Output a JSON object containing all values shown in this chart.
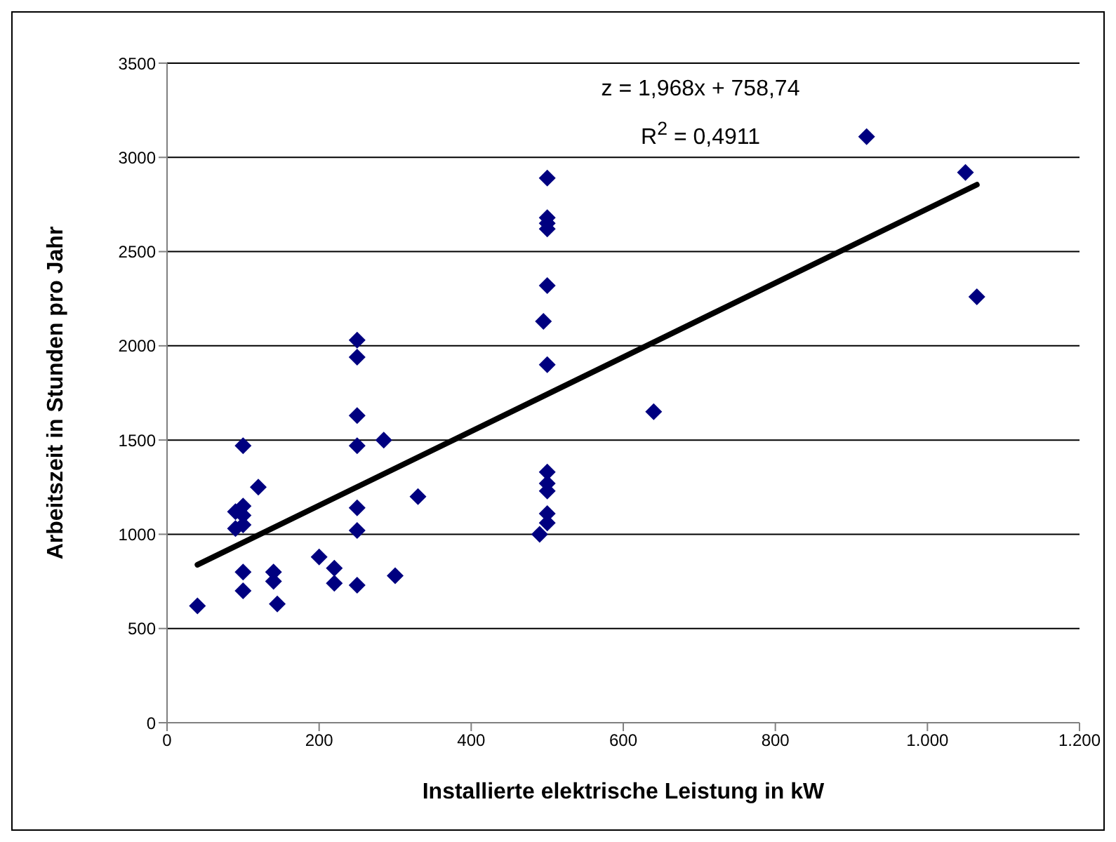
{
  "chart_data": {
    "type": "scatter",
    "xlabel": "Installierte elektrische Leistung in kW",
    "ylabel": "Arbeitszeit in Stunden pro Jahr",
    "xlim": [
      0,
      1200
    ],
    "xticks": [
      0,
      200,
      400,
      600,
      800,
      {
        "value": 1000,
        "label": "1.000"
      },
      {
        "value": 1200,
        "label": "1.200"
      }
    ],
    "ylim": [
      0,
      3500
    ],
    "yticks": [
      0,
      500,
      1000,
      1500,
      2000,
      2500,
      3000,
      3500
    ],
    "grid": "y",
    "legend": false,
    "marker": "diamond",
    "annotations": [
      "z = 1,968x + 758,74",
      "R$^{2}$ = 0,4911"
    ],
    "series": [
      {
        "color": "#000080",
        "x": [
          40,
          90,
          90,
          100,
          100,
          100,
          100,
          100,
          100,
          120,
          140,
          140,
          145,
          200,
          220,
          220,
          250,
          250,
          250,
          250,
          250,
          250,
          250,
          285,
          300,
          330,
          490,
          495,
          500,
          500,
          500,
          500,
          500,
          500,
          500,
          500,
          500,
          500,
          500,
          640,
          920,
          1050,
          1065
        ],
        "values": [
          620,
          1120,
          1030,
          1150,
          1100,
          1050,
          1470,
          800,
          700,
          1250,
          800,
          750,
          630,
          880,
          820,
          740,
          2030,
          1940,
          1630,
          1470,
          1140,
          1020,
          730,
          1500,
          780,
          1200,
          1000,
          2130,
          2890,
          2680,
          2650,
          2620,
          2320,
          1900,
          1330,
          1270,
          1230,
          1110,
          1060,
          1650,
          3110,
          2920,
          2260
        ]
      },
      {
        "type": "line",
        "color": "#000000",
        "marker": "none",
        "line_style": "solid",
        "x": [
          40,
          1065
        ],
        "values": [
          838,
          2855
        ]
      }
    ]
  }
}
